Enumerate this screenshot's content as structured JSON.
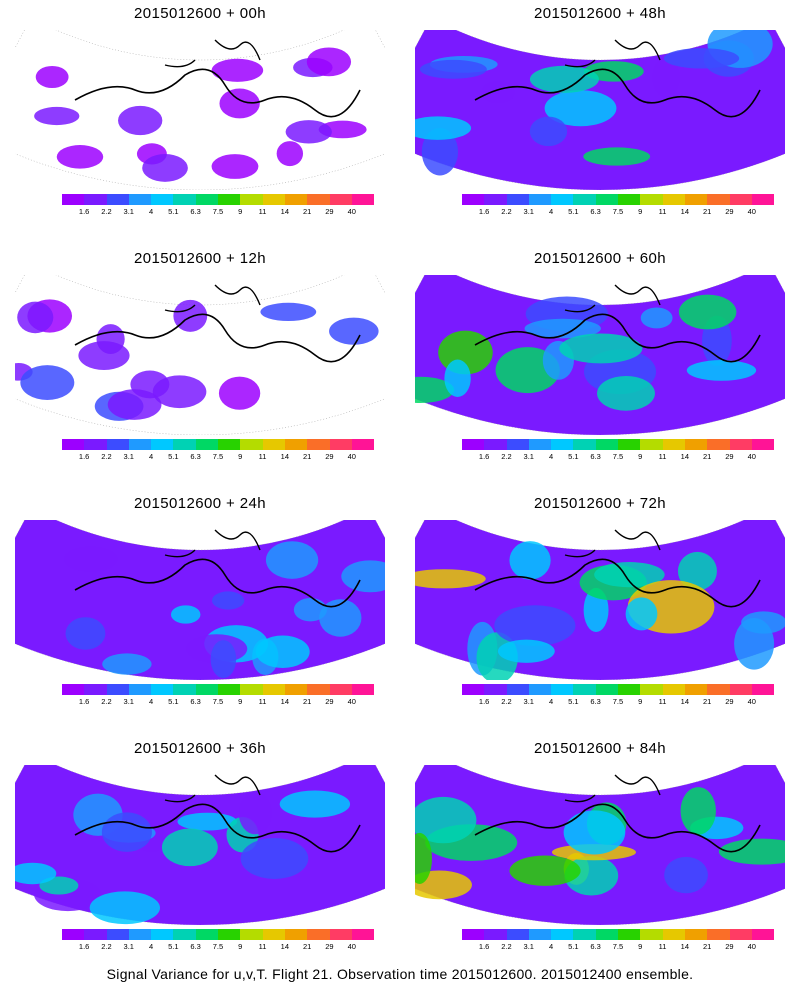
{
  "footer": "Signal Variance for u,v,T. Flight 21. Observation time 2015012600. 2015012400 ensemble.",
  "colorbar": {
    "labels": [
      "1.6",
      "2.2",
      "3.1",
      "4",
      "5.1",
      "6.3",
      "7.5",
      "9",
      "11",
      "14",
      "21",
      "29",
      "40"
    ],
    "colors": [
      "#9c00ff",
      "#7a1aff",
      "#3c4cff",
      "#1f9aff",
      "#00c8ff",
      "#00d2b4",
      "#00d864",
      "#28d200",
      "#b4dc00",
      "#e6c800",
      "#f0a000",
      "#fa6e28",
      "#ff3c64",
      "#ff1496"
    ]
  },
  "panels": [
    {
      "title": "2015012600 + 00h",
      "level": 0.1
    },
    {
      "title": "2015012600 + 48h",
      "level": 0.6
    },
    {
      "title": "2015012600 + 12h",
      "level": 0.2
    },
    {
      "title": "2015012600 + 60h",
      "level": 0.7
    },
    {
      "title": "2015012600 + 24h",
      "level": 0.35
    },
    {
      "title": "2015012600 + 72h",
      "level": 0.8
    },
    {
      "title": "2015012600 + 36h",
      "level": 0.45
    },
    {
      "title": "2015012600 + 84h",
      "level": 0.9
    }
  ]
}
